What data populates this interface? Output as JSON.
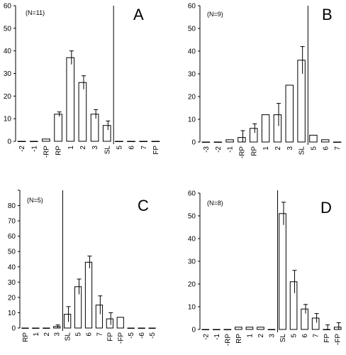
{
  "chart_data": [
    {
      "type": "bar",
      "panel": "A",
      "annotation": "(N=11)",
      "categories": [
        "-2",
        "-1",
        "-RP",
        "RP",
        "1",
        "2",
        "3",
        "SL",
        "5",
        "6",
        "7",
        "FP"
      ],
      "values": [
        0,
        0,
        1,
        12,
        37,
        26,
        12,
        7,
        0,
        0,
        0,
        0
      ],
      "errors": [
        0,
        0,
        0,
        1,
        3,
        3,
        2,
        2,
        0,
        0,
        0,
        0
      ],
      "ylim": [
        0,
        60
      ],
      "yticks": [
        0,
        10,
        20,
        30,
        40,
        50,
        60
      ],
      "divider_after": "SL",
      "grid": false
    },
    {
      "type": "bar",
      "panel": "B",
      "annotation": "(N=9)",
      "categories": [
        "-3",
        "-2",
        "-1",
        "-RP",
        "RP",
        "1",
        "2",
        "3",
        "SL",
        "5",
        "6",
        "7"
      ],
      "values": [
        0,
        0,
        1,
        2,
        6,
        12,
        12,
        25,
        36,
        3,
        1,
        0
      ],
      "errors": [
        0,
        0,
        0,
        3,
        2,
        0,
        5,
        0,
        6,
        0,
        0,
        0
      ],
      "ylim": [
        0,
        60
      ],
      "yticks": [
        0,
        10,
        20,
        30,
        40,
        50,
        60
      ],
      "divider_after": "SL",
      "grid": false
    },
    {
      "type": "bar",
      "panel": "C",
      "annotation": "(N=5)",
      "categories": [
        "RP",
        "1",
        "2",
        "3",
        "SL",
        "5",
        "6",
        "7",
        "FP",
        "-FP",
        "-5",
        "-6",
        "-5"
      ],
      "values": [
        0,
        0,
        0,
        1,
        9,
        27,
        43,
        15,
        6,
        7,
        0,
        0,
        0
      ],
      "errors": [
        0,
        0,
        0,
        1,
        5,
        5,
        4,
        6,
        4,
        0,
        0,
        0,
        0
      ],
      "ylim": [
        0,
        90
      ],
      "yticks": [
        0,
        10,
        20,
        30,
        40,
        50,
        60,
        70,
        80,
        90
      ],
      "ytick_labels": [
        "0",
        "10",
        "20",
        "30",
        "40",
        "50",
        "60",
        "70",
        "80",
        ""
      ],
      "divider_after": "3",
      "grid": false
    },
    {
      "type": "bar",
      "panel": "D",
      "annotation": "(N=8)",
      "categories": [
        "-2",
        "-1",
        "-RP",
        "RP",
        "1",
        "2",
        "3",
        "SL",
        "5",
        "6",
        "7",
        "FP",
        "-FP"
      ],
      "values": [
        0,
        0,
        0,
        1,
        1,
        1,
        0,
        51,
        21,
        9,
        5,
        0,
        1
      ],
      "errors": [
        0,
        0,
        0,
        0,
        0,
        0,
        0,
        5,
        5,
        2,
        2,
        2,
        2
      ],
      "ylim": [
        0,
        60
      ],
      "yticks": [
        0,
        10,
        20,
        30,
        40,
        50,
        60
      ],
      "divider_after": "3",
      "grid": false
    }
  ]
}
